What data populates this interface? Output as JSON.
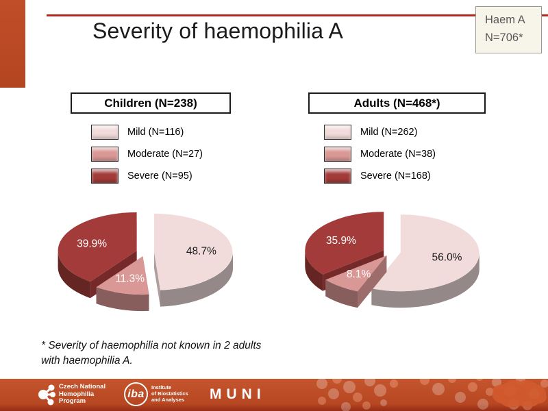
{
  "slide": {
    "title": "Severity of haemophilia A",
    "badge": {
      "line1": "Haem A",
      "line2": "N=706*"
    },
    "footnote_line1": "* Severity of haemophilia not known in 2 adults",
    "footnote_line2": "with haemophilia A."
  },
  "colors": {
    "accent_bar": "#C04E28",
    "top_line": "#B2291F",
    "badge_bg": "#F7F5EA",
    "badge_border": "#99998F",
    "badge_text": "#595959",
    "footer_top": "#C5552D",
    "mild": "#F1DCDB",
    "moderate": "#D99795",
    "severe": "#A23B39"
  },
  "chart_data": [
    {
      "type": "pie",
      "style": "3d-exploded",
      "title": "Children (N=238)",
      "total": 238,
      "categories": [
        "Mild",
        "Moderate",
        "Severe"
      ],
      "counts": [
        116,
        27,
        95
      ],
      "values": [
        48.7,
        11.3,
        39.9
      ],
      "unit": "%",
      "slice_labels": [
        "48.7%",
        "11.3%",
        "39.9%"
      ],
      "legend": [
        "Mild (N=116)",
        "Moderate (N=27)",
        "Severe (N=95)"
      ],
      "legend_position": "top",
      "colors": [
        "#F1DCDB",
        "#D99795",
        "#A23B39"
      ],
      "label_colors": [
        "#1a1a1a",
        "#ffffff",
        "#ffffff"
      ]
    },
    {
      "type": "pie",
      "style": "3d-exploded",
      "title": "Adults (N=468*)",
      "total": 468,
      "categories": [
        "Mild",
        "Moderate",
        "Severe"
      ],
      "counts": [
        262,
        38,
        168
      ],
      "values": [
        56.0,
        8.1,
        35.9
      ],
      "unit": "%",
      "slice_labels": [
        "56.0%",
        "8.1%",
        "35.9%"
      ],
      "legend": [
        "Mild (N=262)",
        "Moderate (N=38)",
        "Severe (N=168)"
      ],
      "legend_position": "top",
      "colors": [
        "#F1DCDB",
        "#D99795",
        "#A23B39"
      ],
      "label_colors": [
        "#1a1a1a",
        "#ffffff",
        "#ffffff"
      ]
    }
  ],
  "footer": {
    "cnhp": {
      "line1": "Czech National",
      "line2": "Hemophilia",
      "line3": "Program"
    },
    "iba": {
      "abbr": "iba",
      "line1": "Institute",
      "line2": "of Biostatistics",
      "line3": "and Analyses"
    },
    "muni": "MUNI"
  }
}
